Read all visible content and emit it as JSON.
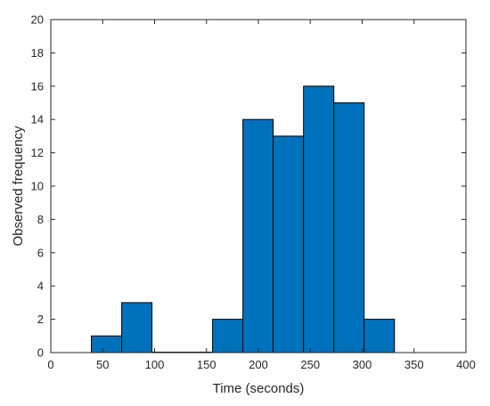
{
  "chart_data": {
    "type": "bar",
    "title": "",
    "xlabel": "Time (seconds)",
    "ylabel": "Observed frequency",
    "xlim": [
      0,
      400
    ],
    "ylim": [
      0,
      20
    ],
    "x_ticks": [
      0,
      50,
      100,
      150,
      200,
      250,
      300,
      350,
      400
    ],
    "y_ticks": [
      0,
      2,
      4,
      6,
      8,
      10,
      12,
      14,
      16,
      18,
      20
    ],
    "bin_edges": [
      39.1,
      68.3,
      97.5,
      126.7,
      155.9,
      185.1,
      214.3,
      243.5,
      272.7,
      301.9,
      331.1
    ],
    "values": [
      1,
      3,
      0,
      0,
      2,
      14,
      13,
      16,
      15,
      2
    ],
    "grid": false,
    "legend": "none",
    "colors": {
      "bar_fill": "#0072BD",
      "bar_edge": "#000000",
      "axes": "#262626"
    }
  }
}
